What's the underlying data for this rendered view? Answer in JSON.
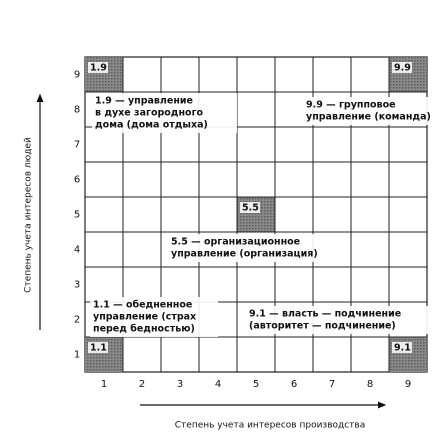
{
  "y_axis": {
    "label": "Степень учета интересов людей",
    "ticks": [
      1,
      2,
      3,
      4,
      5,
      6,
      7,
      8,
      9
    ]
  },
  "x_axis": {
    "label": "Степень учета интересов производства",
    "ticks": [
      1,
      2,
      3,
      4,
      5,
      6,
      7,
      8,
      9
    ]
  },
  "cells": [
    {
      "label": "1.9",
      "col": 1,
      "row": 9
    },
    {
      "label": "9.9",
      "col": 9,
      "row": 9
    },
    {
      "label": "5.5",
      "col": 5,
      "row": 5
    },
    {
      "label": "1.1",
      "col": 1,
      "row": 1
    },
    {
      "label": "9.1",
      "col": 9,
      "row": 1
    }
  ],
  "descriptions": [
    {
      "lines": [
        "1.9 — управление",
        "в духе загородного",
        "дома (дома отдыха)"
      ]
    },
    {
      "lines": [
        "9.9 — групповое",
        "управление (команда)"
      ]
    },
    {
      "lines": [
        "5.5 — организационное",
        "управление (организация)"
      ]
    },
    {
      "lines": [
        "1.1 — обедненное",
        "управление (страх",
        "перед бедностью)"
      ]
    },
    {
      "lines": [
        "9.1 — власть — подчинение",
        "(авторитет — подчинение)"
      ]
    }
  ]
}
